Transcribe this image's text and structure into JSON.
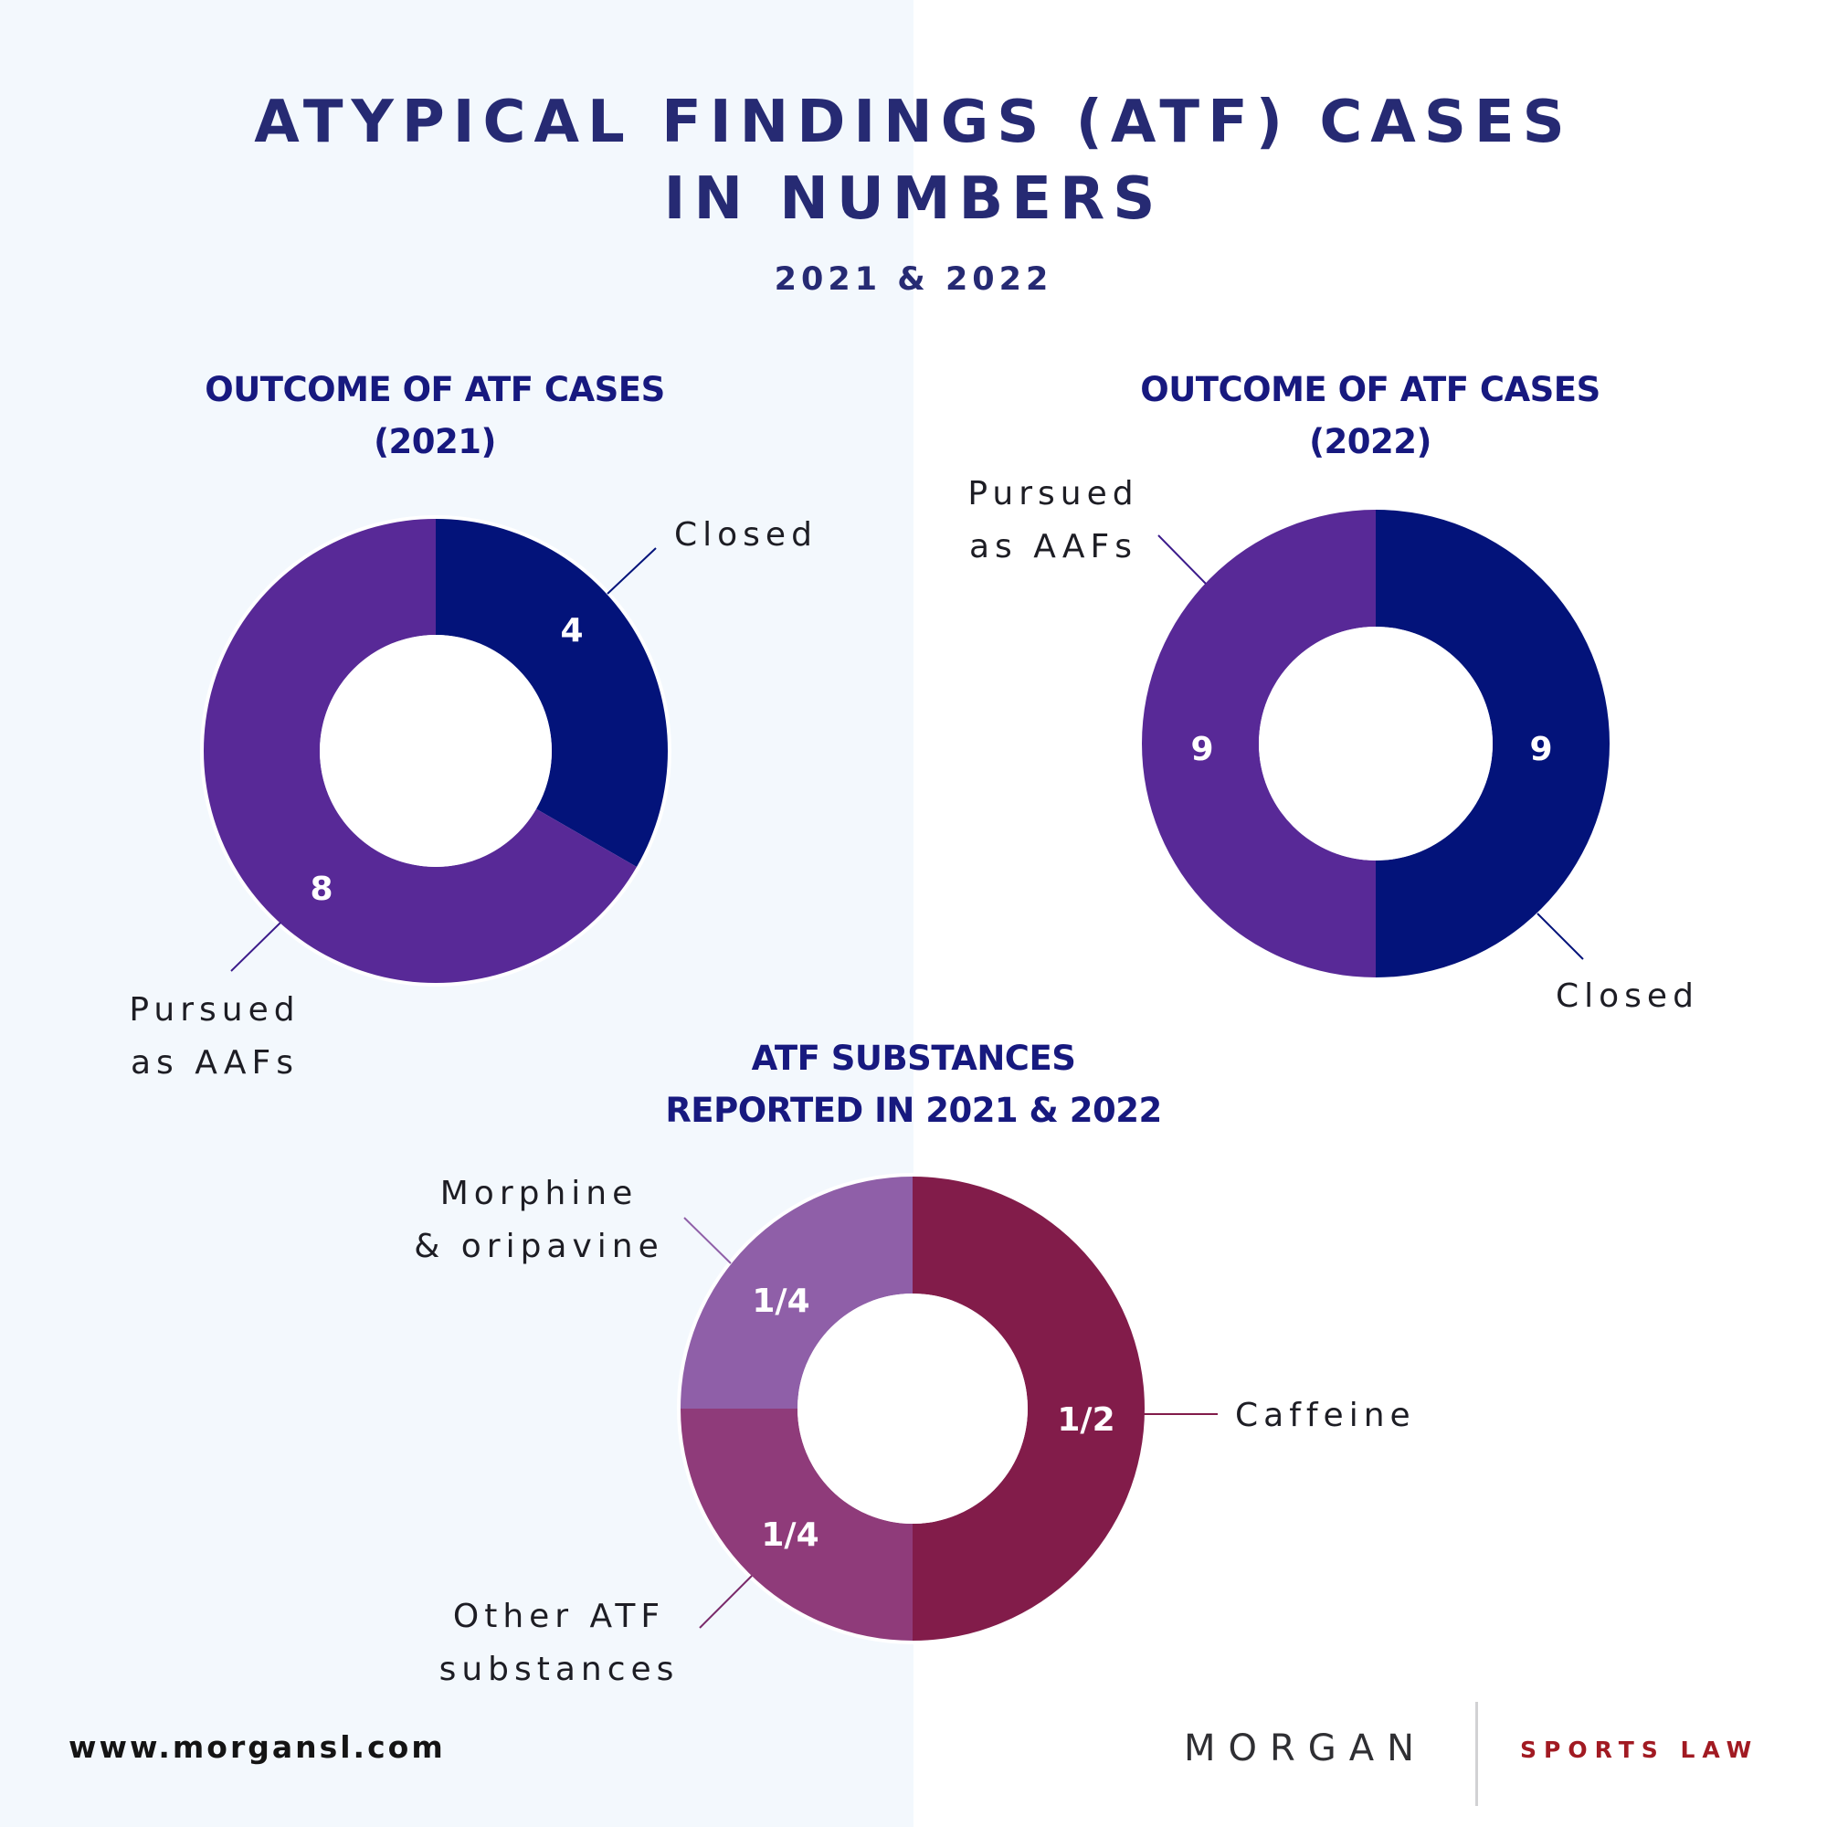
{
  "header": {
    "title_line1": "ATYPICAL FINDINGS (ATF) CASES",
    "title_line2": "IN NUMBERS",
    "subtitle": "2021 & 2022"
  },
  "colors": {
    "background_left": "#f3f8fd",
    "background_right": "#ffffff",
    "title": "#262a73",
    "heading": "#17197f",
    "closed": "#03137a",
    "pursued": "#582997",
    "caffeine": "#821c4a",
    "other_atf": "#8f3b7a",
    "morphine": "#8f5fa8",
    "brand_red": "#a11a22"
  },
  "chart_data": [
    {
      "type": "pie",
      "variant": "donut",
      "title": "OUTCOME OF ATF CASES (2021)",
      "categories": [
        "Closed",
        "Pursued as AAFs"
      ],
      "values": [
        4,
        8
      ],
      "value_labels": [
        "4",
        "8"
      ],
      "colors": [
        "#03137a",
        "#582997"
      ],
      "start_angle_deg": 0,
      "direction": "clockwise",
      "legend": "callout labels with leader lines"
    },
    {
      "type": "pie",
      "variant": "donut",
      "title": "OUTCOME OF ATF CASES (2022)",
      "categories": [
        "Closed",
        "Pursued as AAFs"
      ],
      "values": [
        9,
        9
      ],
      "value_labels": [
        "9",
        "9"
      ],
      "colors": [
        "#03137a",
        "#582997"
      ],
      "start_angle_deg": 0,
      "direction": "clockwise",
      "legend": "callout labels with leader lines"
    },
    {
      "type": "pie",
      "variant": "donut",
      "title": "ATF SUBSTANCES REPORTED IN 2021 & 2022",
      "categories": [
        "Caffeine",
        "Other ATF substances",
        "Morphine & oripavine"
      ],
      "values": [
        0.5,
        0.25,
        0.25
      ],
      "value_labels": [
        "1/2",
        "1/4",
        "1/4"
      ],
      "colors": [
        "#821c4a",
        "#8f3b7a",
        "#8f5fa8"
      ],
      "start_angle_deg": 0,
      "direction": "clockwise",
      "legend": "callout labels with leader lines"
    }
  ],
  "charts": {
    "c2021": {
      "heading_line1": "OUTCOME OF ATF CASES",
      "heading_line2": "(2021)",
      "callout_closed": "Closed",
      "callout_pursued_line1": "Pursued",
      "callout_pursued_line2": "as AAFs"
    },
    "c2022": {
      "heading_line1": "OUTCOME OF ATF CASES",
      "heading_line2": "(2022)",
      "callout_closed": "Closed",
      "callout_pursued_line1": "Pursued",
      "callout_pursued_line2": "as AAFs"
    },
    "substances": {
      "heading_line1": "ATF SUBSTANCES",
      "heading_line2": "REPORTED IN 2021 & 2022",
      "callout_caffeine": "Caffeine",
      "callout_morphine_line1": "Morphine",
      "callout_morphine_line2": "& oripavine",
      "callout_other_line1": "Other ATF",
      "callout_other_line2": "substances"
    }
  },
  "footer": {
    "url": "www.morgansl.com",
    "brand_name": "MORGAN",
    "brand_tagline": "SPORTS LAW"
  }
}
